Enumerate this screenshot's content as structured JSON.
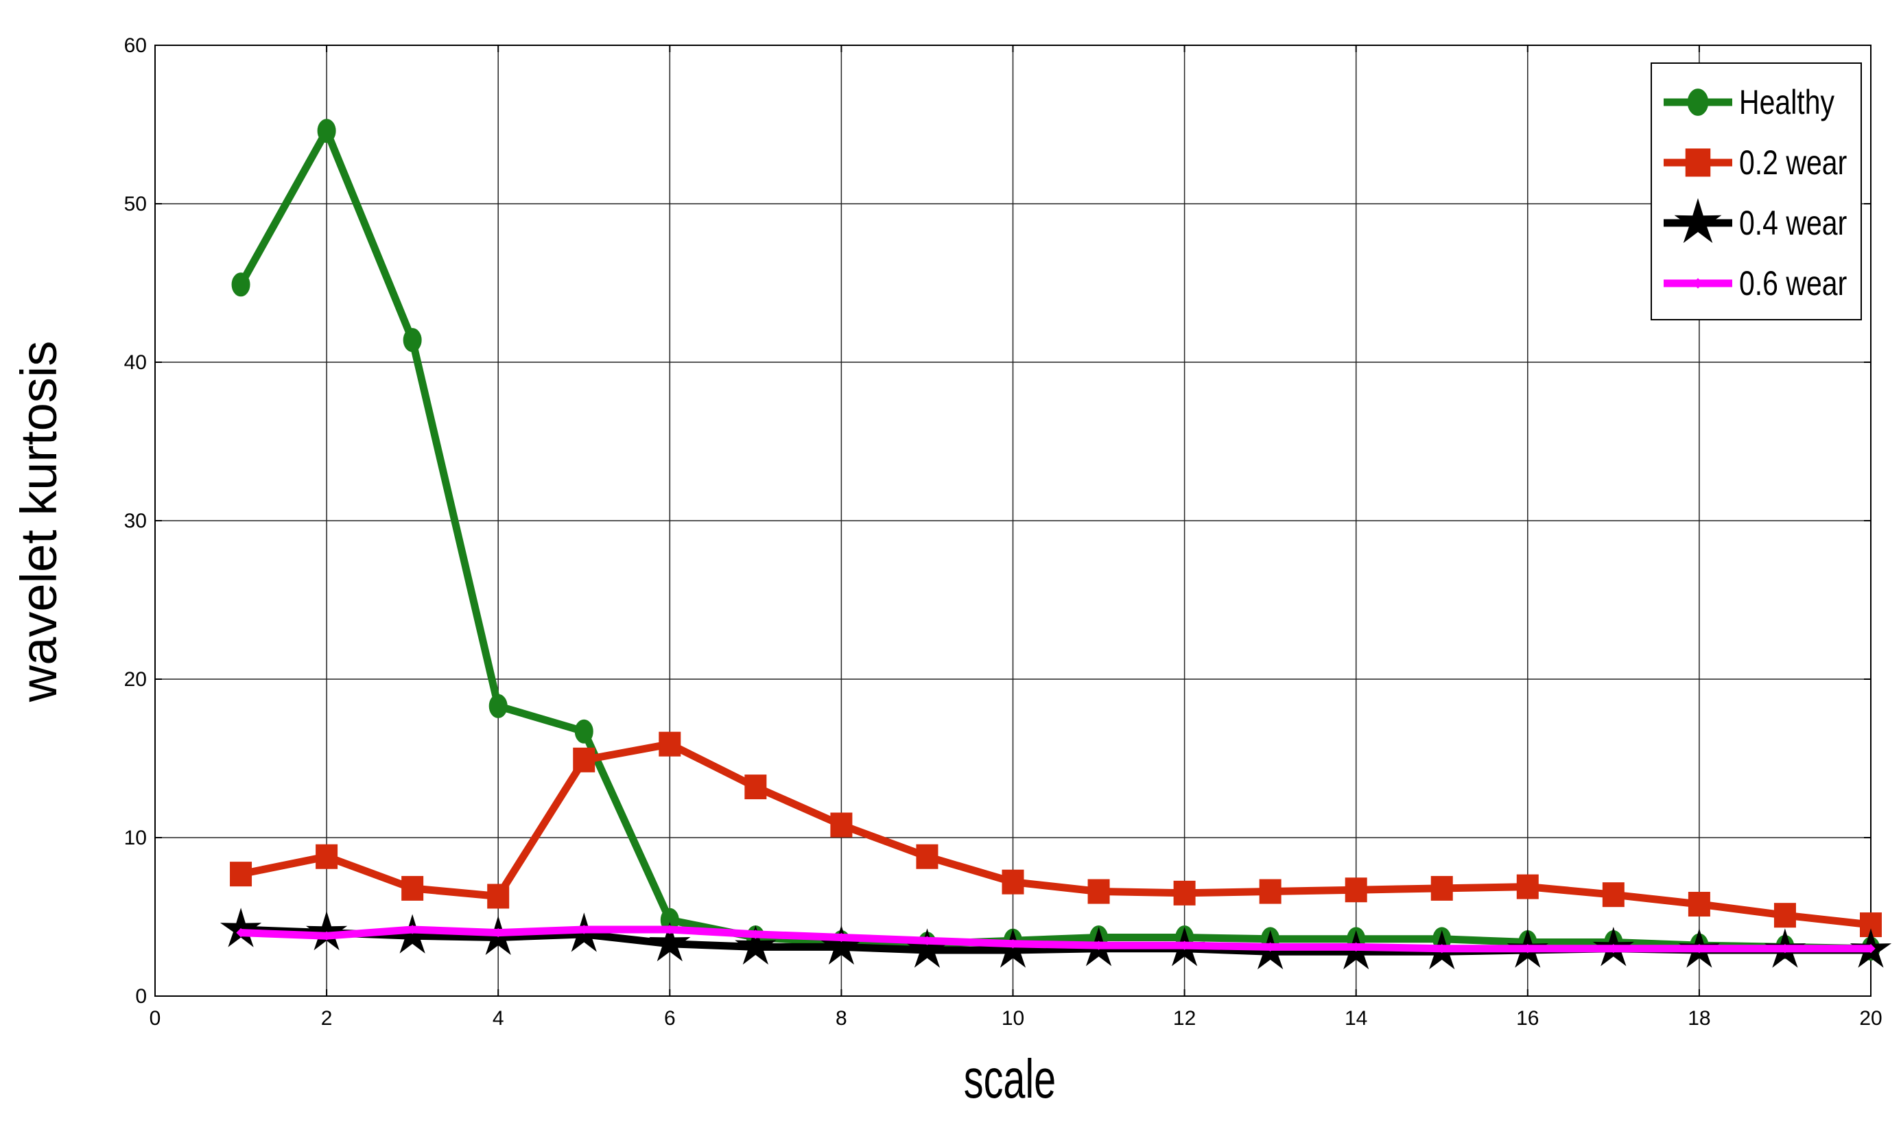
{
  "chart_data": {
    "type": "line",
    "xlabel": "scale",
    "ylabel": "wavelet kurtosis",
    "xlim": [
      0,
      20
    ],
    "ylim": [
      0,
      60
    ],
    "xticks": [
      "0",
      "2",
      "4",
      "6",
      "8",
      "10",
      "12",
      "14",
      "16",
      "18",
      "20"
    ],
    "yticks": [
      "0",
      "10",
      "20",
      "30",
      "40",
      "50",
      "60"
    ],
    "grid": true,
    "legend_position": "top-right",
    "x": [
      1,
      2,
      3,
      4,
      5,
      6,
      7,
      8,
      9,
      10,
      11,
      12,
      13,
      14,
      15,
      16,
      17,
      18,
      19,
      20
    ],
    "series": [
      {
        "name": "Healthy",
        "color": "#1a7f1a",
        "marker": "circle",
        "values": [
          44.9,
          54.6,
          41.4,
          18.3,
          16.7,
          4.8,
          3.7,
          3.4,
          3.3,
          3.5,
          3.7,
          3.7,
          3.6,
          3.6,
          3.6,
          3.4,
          3.4,
          3.2,
          3.1,
          3.0
        ]
      },
      {
        "name": "0.2 wear",
        "color": "#d42a0b",
        "marker": "square",
        "values": [
          7.7,
          8.8,
          6.8,
          6.3,
          14.9,
          15.9,
          13.2,
          10.8,
          8.8,
          7.2,
          6.6,
          6.5,
          6.6,
          6.7,
          6.8,
          6.9,
          6.4,
          5.8,
          5.1,
          4.5
        ]
      },
      {
        "name": "0.4 wear",
        "color": "#000000",
        "marker": "star",
        "values": [
          4.2,
          4.0,
          3.8,
          3.7,
          3.9,
          3.3,
          3.1,
          3.1,
          2.9,
          2.9,
          3.0,
          3.0,
          2.8,
          2.8,
          2.8,
          2.9,
          3.0,
          2.9,
          2.9,
          2.9
        ]
      },
      {
        "name": "0.6 wear",
        "color": "#ff00ff",
        "marker": "diamond",
        "values": [
          4.0,
          3.8,
          4.2,
          4.0,
          4.2,
          4.2,
          3.9,
          3.7,
          3.5,
          3.3,
          3.2,
          3.2,
          3.1,
          3.1,
          3.0,
          3.0,
          3.0,
          3.0,
          3.0,
          3.0
        ]
      }
    ]
  }
}
